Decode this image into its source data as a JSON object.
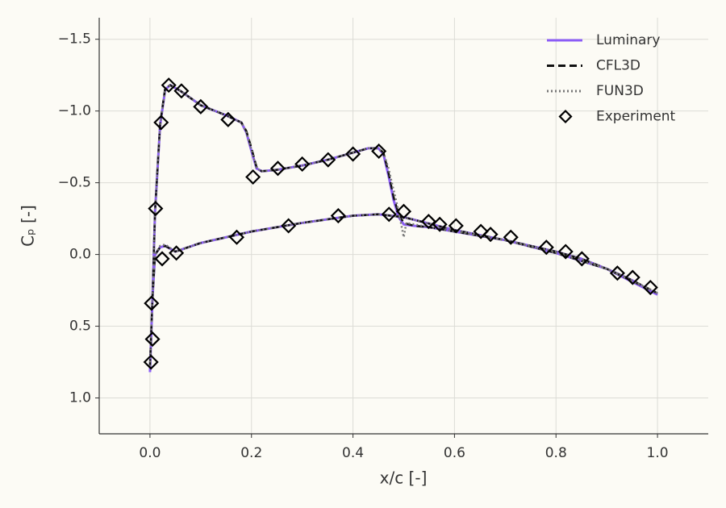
{
  "chart_data": {
    "type": "line",
    "x_label": "x/c [-]",
    "y_label": "Cₚ [-]",
    "xlim": [
      -0.1,
      1.1
    ],
    "ylim": [
      -1.65,
      1.25
    ],
    "y_inverted": true,
    "grid": true,
    "legend": "upper right",
    "xticks": [
      {
        "value": 0,
        "label": "0.0"
      },
      0.2,
      0.4,
      0.6,
      0.8,
      {
        "value": 1,
        "label": "1.0"
      }
    ],
    "yticks": [
      {
        "value": -1.5,
        "label": "−1.5"
      },
      {
        "value": -1,
        "label": "−1.0"
      },
      {
        "value": -0.5,
        "label": "−0.5"
      },
      {
        "value": 0,
        "label": "0.0"
      },
      0.5,
      {
        "value": 1,
        "label": "1.0"
      }
    ],
    "series": [
      {
        "name": "Luminary",
        "color": "#8b5cf6",
        "style": "solid",
        "x": [
          0,
          0.005,
          0.01,
          0.02,
          0.03,
          0.04,
          0.06,
          0.1,
          0.15,
          0.18,
          0.19,
          0.2,
          0.21,
          0.22,
          0.25,
          0.3,
          0.35,
          0.4,
          0.43,
          0.45,
          0.46,
          0.47,
          0.48,
          0.49,
          0.5,
          0.52,
          0.55,
          0.6,
          0.65,
          0.7,
          0.75,
          0.8,
          0.85,
          0.9,
          0.95,
          1.0,
          null,
          0,
          0.005,
          0.01,
          0.02,
          0.03,
          0.05,
          0.1,
          0.15,
          0.2,
          0.3,
          0.4,
          0.45,
          0.5,
          0.6,
          0.7,
          0.8,
          0.9,
          1.0
        ],
        "values": [
          0.82,
          0.3,
          -0.3,
          -0.9,
          -1.15,
          -1.18,
          -1.14,
          -1.04,
          -0.97,
          -0.92,
          -0.85,
          -0.72,
          -0.6,
          -0.58,
          -0.59,
          -0.62,
          -0.66,
          -0.71,
          -0.74,
          -0.74,
          -0.7,
          -0.55,
          -0.38,
          -0.26,
          -0.21,
          -0.2,
          -0.19,
          -0.16,
          -0.13,
          -0.1,
          -0.06,
          -0.02,
          0.03,
          0.1,
          0.18,
          0.28,
          null,
          0.82,
          0.3,
          0.0,
          -0.05,
          -0.06,
          -0.02,
          -0.08,
          -0.12,
          -0.16,
          -0.22,
          -0.27,
          -0.28,
          -0.26,
          -0.17,
          -0.1,
          -0.01,
          0.1,
          0.28
        ]
      },
      {
        "name": "CFL3D",
        "color": "#111111",
        "style": "dashed",
        "x": [
          0,
          0.005,
          0.01,
          0.02,
          0.03,
          0.04,
          0.06,
          0.1,
          0.15,
          0.18,
          0.19,
          0.2,
          0.21,
          0.22,
          0.25,
          0.3,
          0.35,
          0.4,
          0.43,
          0.45,
          0.46,
          0.47,
          0.48,
          0.49,
          0.5,
          0.52,
          0.55,
          0.6,
          0.65,
          0.7,
          0.75,
          0.8,
          0.85,
          0.9,
          0.95,
          1.0,
          null,
          0,
          0.005,
          0.01,
          0.02,
          0.03,
          0.05,
          0.1,
          0.15,
          0.2,
          0.3,
          0.4,
          0.45,
          0.5,
          0.6,
          0.7,
          0.8,
          0.9,
          1.0
        ],
        "values": [
          0.78,
          0.3,
          -0.3,
          -0.91,
          -1.16,
          -1.18,
          -1.14,
          -1.04,
          -0.97,
          -0.92,
          -0.86,
          -0.74,
          -0.61,
          -0.58,
          -0.59,
          -0.62,
          -0.66,
          -0.71,
          -0.74,
          -0.74,
          -0.71,
          -0.57,
          -0.4,
          -0.28,
          -0.22,
          -0.2,
          -0.19,
          -0.16,
          -0.13,
          -0.1,
          -0.06,
          -0.02,
          0.03,
          0.1,
          0.18,
          0.27,
          null,
          0.78,
          0.3,
          0.0,
          -0.05,
          -0.06,
          -0.02,
          -0.08,
          -0.12,
          -0.16,
          -0.22,
          -0.27,
          -0.28,
          -0.26,
          -0.17,
          -0.1,
          -0.01,
          0.1,
          0.27
        ]
      },
      {
        "name": "FUN3D",
        "color": "#777777",
        "style": "dotted",
        "x": [
          0,
          0.005,
          0.01,
          0.02,
          0.03,
          0.04,
          0.06,
          0.1,
          0.15,
          0.18,
          0.19,
          0.2,
          0.21,
          0.22,
          0.25,
          0.3,
          0.35,
          0.4,
          0.43,
          0.45,
          0.46,
          0.47,
          0.48,
          0.49,
          0.5,
          0.505,
          0.52,
          0.55,
          0.6,
          0.65,
          0.7,
          0.75,
          0.8,
          0.85,
          0.9,
          0.95,
          1.0,
          null,
          0,
          0.005,
          0.01,
          0.02,
          0.03,
          0.05,
          0.1,
          0.15,
          0.2,
          0.3,
          0.4,
          0.45,
          0.5,
          0.6,
          0.7,
          0.8,
          0.9,
          1.0
        ],
        "values": [
          0.78,
          0.3,
          -0.3,
          -0.9,
          -1.15,
          -1.18,
          -1.14,
          -1.04,
          -0.97,
          -0.92,
          -0.85,
          -0.73,
          -0.6,
          -0.58,
          -0.59,
          -0.62,
          -0.66,
          -0.71,
          -0.74,
          -0.74,
          -0.71,
          -0.6,
          -0.45,
          -0.3,
          -0.12,
          -0.22,
          -0.21,
          -0.19,
          -0.16,
          -0.13,
          -0.1,
          -0.06,
          -0.02,
          0.03,
          0.1,
          0.18,
          0.27,
          null,
          0.78,
          0.3,
          0.0,
          -0.06,
          -0.07,
          -0.02,
          -0.08,
          -0.12,
          -0.16,
          -0.22,
          -0.27,
          -0.28,
          -0.26,
          -0.17,
          -0.1,
          -0.01,
          0.1,
          0.27
        ]
      },
      {
        "name": "Experiment",
        "color": "#000000",
        "style": "markers",
        "marker": "diamond",
        "x": [
          0.037,
          0.062,
          0.1,
          0.154,
          0.203,
          0.252,
          0.3,
          0.351,
          0.4,
          0.451,
          0.5,
          0.549,
          0.571,
          0.603,
          0.652,
          0.671,
          0.711,
          0.781,
          0.819,
          0.851,
          0.921,
          0.951,
          0.986,
          0.022,
          0.011,
          0.002,
          0.005,
          0.003,
          0.024,
          0.052,
          0.171,
          0.273,
          0.371,
          0.471
        ],
        "values": [
          -1.18,
          -1.14,
          -1.03,
          -0.94,
          -0.54,
          -0.6,
          -0.63,
          -0.66,
          -0.7,
          -0.72,
          -0.3,
          -0.23,
          -0.21,
          -0.2,
          -0.16,
          -0.14,
          -0.12,
          -0.05,
          -0.02,
          0.03,
          0.13,
          0.16,
          0.23,
          -0.92,
          -0.32,
          0.75,
          0.59,
          0.34,
          0.03,
          -0.01,
          -0.12,
          -0.2,
          -0.27,
          -0.28
        ]
      }
    ]
  }
}
